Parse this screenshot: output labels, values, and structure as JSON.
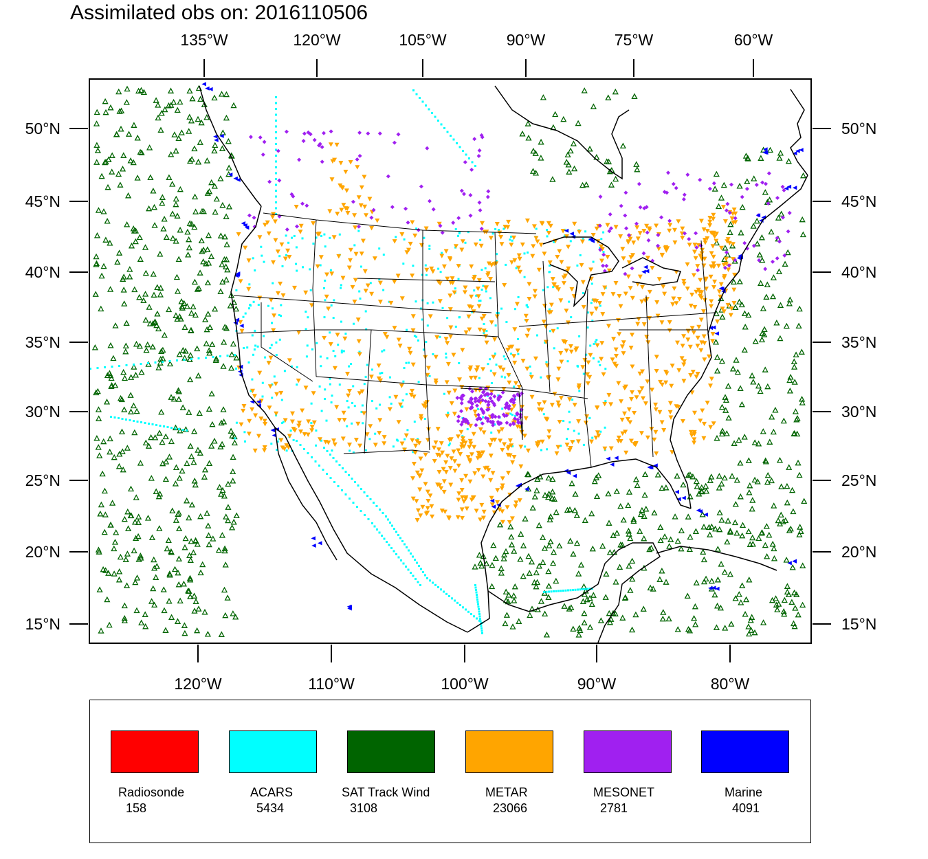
{
  "title": "Assimilated obs on: 2016110506",
  "top_lon_labels": [
    "135°W",
    "120°W",
    "105°W",
    "90°W",
    "75°W",
    "60°W"
  ],
  "bottom_lon_labels": [
    "120°W",
    "110°W",
    "100°W",
    "90°W",
    "80°W"
  ],
  "lat_labels": [
    "50°N",
    "45°N",
    "40°N",
    "35°N",
    "30°N",
    "25°N",
    "20°N",
    "15°N"
  ],
  "legend": [
    {
      "name": "Radiosonde",
      "count": "158",
      "color": "#ff0000"
    },
    {
      "name": "ACARS",
      "count": "5434",
      "color": "#00ffff"
    },
    {
      "name": "SAT Track Wind",
      "count": "3108",
      "color": "#006400"
    },
    {
      "name": "METAR",
      "count": "23066",
      "color": "#ffa500"
    },
    {
      "name": "MESONET",
      "count": "2781",
      "color": "#a020f0"
    },
    {
      "name": "Marine",
      "count": "4091",
      "color": "#0000ff"
    }
  ]
}
